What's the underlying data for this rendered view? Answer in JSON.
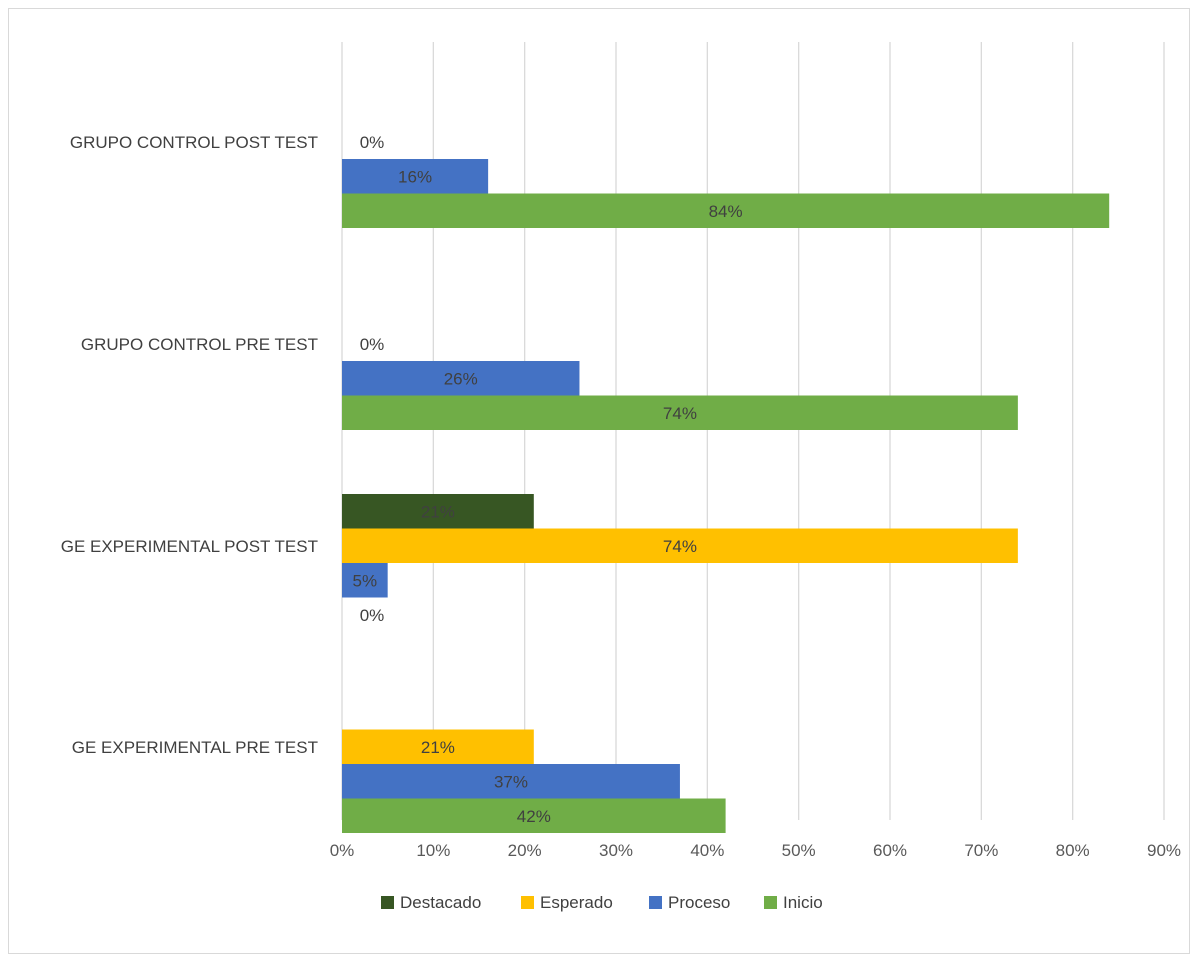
{
  "chart_data": {
    "type": "bar",
    "orientation": "horizontal",
    "categories": [
      "GE EXPERIMENTAL PRE TEST",
      "GE EXPERIMENTAL POST TEST",
      "GRUPO CONTROL PRE TEST",
      "GRUPO CONTROL POST TEST"
    ],
    "series": [
      {
        "name": "Destacado",
        "color": "#375623",
        "values": [
          null,
          21,
          null,
          null
        ],
        "labels": [
          null,
          "21%",
          null,
          null
        ]
      },
      {
        "name": "Esperado",
        "color": "#FFC000",
        "values": [
          21,
          74,
          null,
          null
        ],
        "labels": [
          "21%",
          "74%",
          null,
          null
        ]
      },
      {
        "name": "Proceso",
        "color": "#4472C4",
        "values": [
          37,
          5,
          26,
          16
        ],
        "labels": [
          "37%",
          "5%",
          "26%",
          "16%"
        ]
      },
      {
        "name": "Inicio",
        "color": "#70AD47",
        "values": [
          42,
          0,
          74,
          84
        ],
        "labels": [
          "42%",
          "0%",
          "74%",
          "84%"
        ]
      }
    ],
    "extra_labels": [
      {
        "category": 2,
        "series": 1,
        "text": "0%"
      },
      {
        "category": 3,
        "series": 1,
        "text": "0%"
      }
    ],
    "x_ticks": [
      "0%",
      "10%",
      "20%",
      "30%",
      "40%",
      "50%",
      "60%",
      "70%",
      "80%",
      "90%"
    ],
    "xlim": [
      0,
      90
    ],
    "grid": true,
    "legend_position": "bottom",
    "title": "",
    "xlabel": "",
    "ylabel": ""
  }
}
